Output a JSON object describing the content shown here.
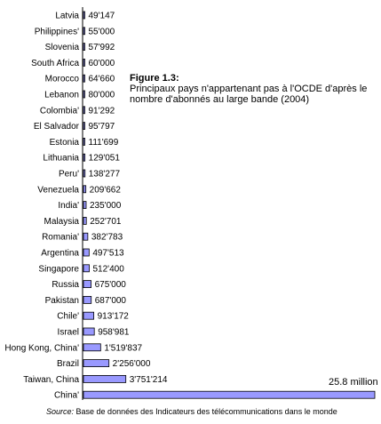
{
  "figure": {
    "title": "Figure 1.3:",
    "description": "Principaux pays n'appartenant pas à l'OCDE d'après le nombre d'abonnés au large bande (2004)"
  },
  "source": {
    "label": "Source:",
    "text": " Base de données des Indicateurs des télécommunications dans le monde"
  },
  "chart_data": {
    "type": "bar",
    "orientation": "horizontal",
    "categories": [
      "Latvia",
      "Philippines'",
      "Slovenia",
      "South Africa",
      "Morocco",
      "Lebanon",
      "Colombia'",
      "El Salvador",
      "Estonia",
      "Lithuania",
      "Peru'",
      "Venezuela",
      "India'",
      "Malaysia",
      "Romania'",
      "Argentina",
      "Singapore",
      "Russia",
      "Pakistan",
      "Chile'",
      "Israel",
      "Hong Kong, China'",
      "Brazil",
      "Taiwan, China",
      "China'"
    ],
    "values": [
      49147,
      55000,
      57992,
      60000,
      64660,
      80000,
      91292,
      95797,
      111699,
      129051,
      138277,
      209662,
      235000,
      252701,
      382783,
      497513,
      512400,
      675000,
      687000,
      913172,
      958981,
      1519837,
      2256000,
      3751214,
      25800000
    ],
    "value_labels": [
      "49'147",
      "55'000",
      "57'992",
      "60'000",
      "64'660",
      "80'000",
      "91'292",
      "95'797",
      "111'699",
      "129'051",
      "138'277",
      "209'662",
      "235'000",
      "252'701",
      "382'783",
      "497'513",
      "512'400",
      "675'000",
      "687'000",
      "913'172",
      "958'981",
      "1'519'837",
      "2'256'000",
      "3'751'214",
      ""
    ],
    "annotation": "25.8 million",
    "bar_color": "#9999ff",
    "grid": false
  }
}
